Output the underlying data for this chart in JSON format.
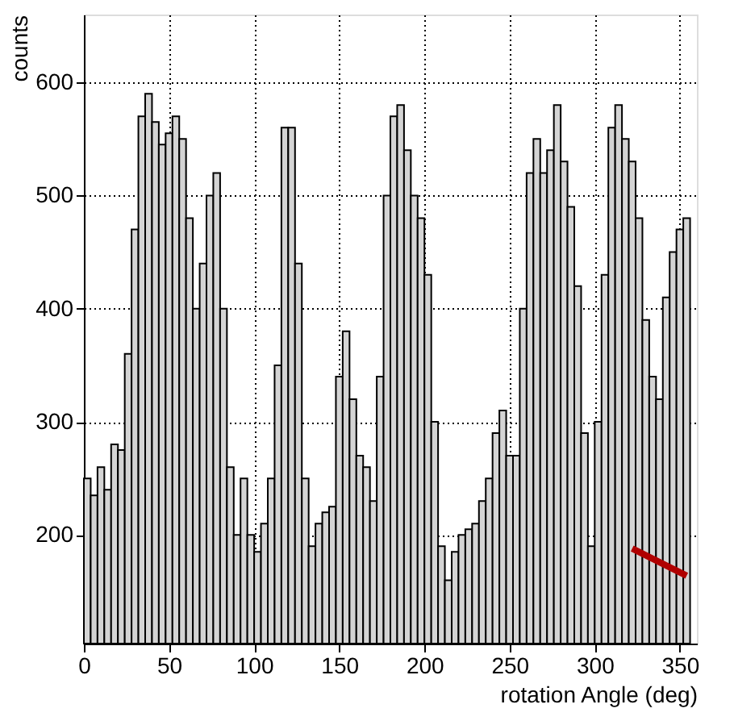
{
  "chart_data": {
    "type": "histogram",
    "xlabel": "rotation Angle (deg)",
    "ylabel": "counts",
    "bins": [
      0,
      4,
      8,
      12,
      16,
      20,
      24,
      28,
      32,
      36,
      40,
      44,
      48,
      52,
      56,
      60,
      64,
      68,
      72,
      76,
      80,
      84,
      88,
      92,
      96,
      100,
      104,
      108,
      112,
      116,
      120,
      124,
      128,
      132,
      136,
      140,
      144,
      148,
      152,
      156,
      160,
      164,
      168,
      172,
      176,
      180,
      184,
      188,
      192,
      196,
      200,
      204,
      208,
      212,
      216,
      220,
      224,
      228,
      232,
      236,
      240,
      244,
      248,
      252,
      256,
      260,
      264,
      268,
      272,
      276,
      280,
      284,
      288,
      292,
      296,
      300,
      304,
      308,
      312,
      316,
      320,
      324,
      328,
      332,
      336,
      340,
      344,
      348,
      352,
      356
    ],
    "values": [
      250,
      235,
      260,
      240,
      280,
      275,
      360,
      470,
      570,
      590,
      565,
      545,
      555,
      570,
      550,
      480,
      400,
      440,
      500,
      520,
      400,
      260,
      200,
      250,
      200,
      185,
      210,
      250,
      350,
      560,
      560,
      440,
      250,
      190,
      210,
      220,
      225,
      340,
      380,
      320,
      270,
      260,
      230,
      340,
      500,
      570,
      580,
      540,
      500,
      480,
      430,
      300,
      190,
      160,
      185,
      200,
      205,
      210,
      230,
      250,
      290,
      310,
      270,
      270,
      400,
      520,
      550,
      520,
      540,
      580,
      530,
      490,
      420,
      290,
      190,
      300,
      430,
      560,
      580,
      550,
      530,
      480,
      390,
      340,
      320,
      410,
      450,
      470,
      480
    ],
    "color": "#d4d4d4",
    "series": [
      {
        "type": "line",
        "color": "#b00000",
        "x": [
          322,
          354
        ],
        "values": [
          188,
          164
        ]
      }
    ],
    "xlim": [
      0,
      360
    ],
    "ylim": [
      104,
      660
    ],
    "xticks": [
      0,
      50,
      100,
      150,
      200,
      250,
      300,
      350
    ],
    "yticks": [
      200,
      300,
      400,
      500,
      600
    ],
    "grid": true
  }
}
